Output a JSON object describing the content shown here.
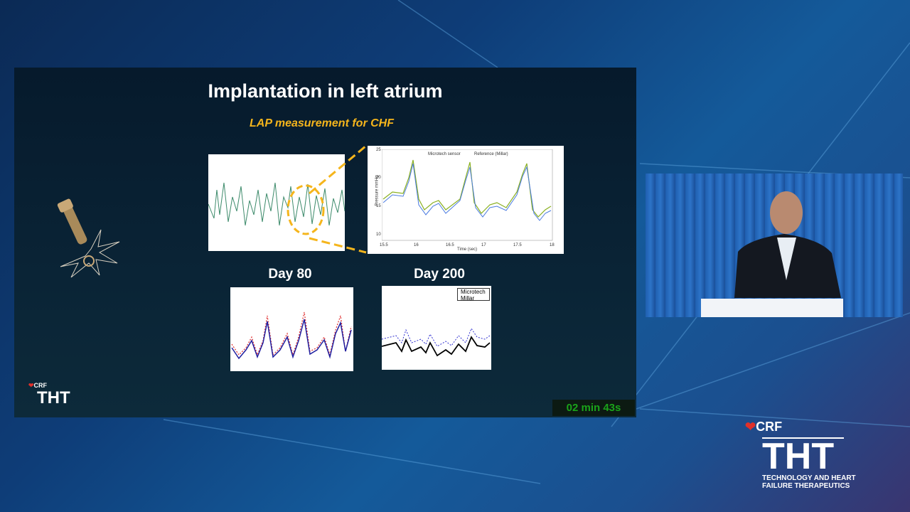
{
  "slide": {
    "title": "Implantation in left atrium",
    "subtitle": "LAP measurement for CHF",
    "zoom_plot": {
      "legend": [
        "Microtech sensor",
        "Reference (Millar)"
      ],
      "y_label": "Pressure mmHg",
      "x_label": "Time (sec)",
      "x_ticks": [
        "15.5",
        "16",
        "16.5",
        "17",
        "17.5",
        "18"
      ],
      "y_ticks": [
        "25",
        "20",
        "15",
        "10"
      ]
    },
    "day_labels": [
      "Day 80",
      "Day 200"
    ],
    "day200_legend": [
      "Microtech",
      "Millar"
    ],
    "logo": {
      "brand": "CRF",
      "name": "THT"
    }
  },
  "timer": "02 min 43s",
  "branding": {
    "brand": "CRF",
    "name": "THT",
    "tagline": "TECHNOLOGY AND HEART FAILURE THERAPEUTICS"
  }
}
